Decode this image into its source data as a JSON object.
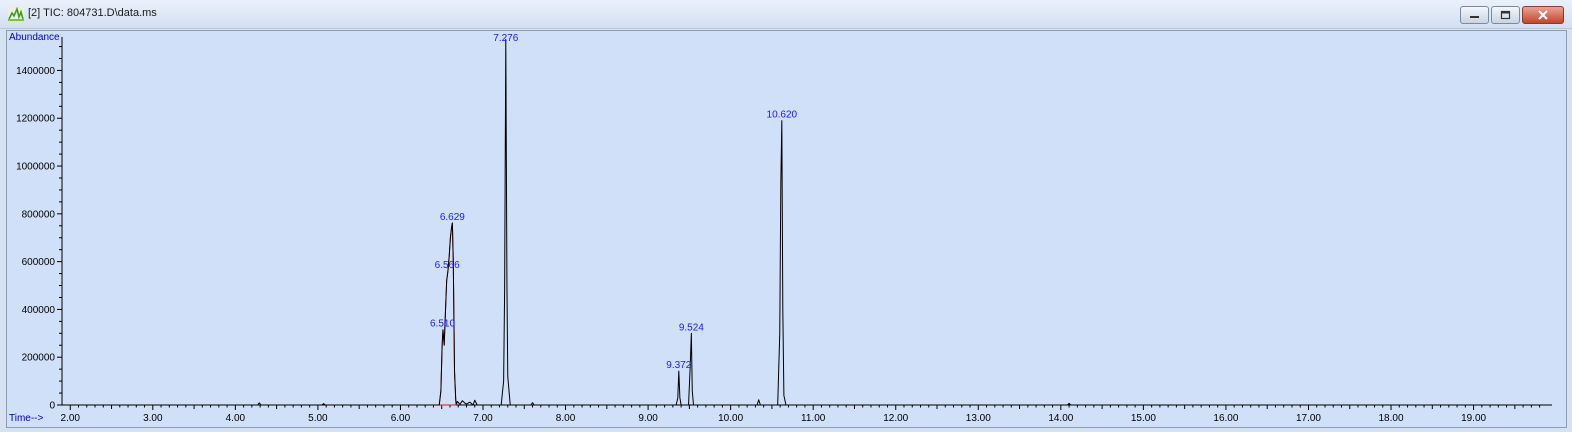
{
  "window": {
    "title": "[2] TIC: 804731.D\\data.ms",
    "icon": "chromatogram-app-icon",
    "controls": [
      "minimize-icon",
      "restore-icon",
      "close-icon"
    ]
  },
  "chart_data": {
    "type": "line",
    "title": "[2] TIC: 804731.D\\data.ms",
    "ylabel": "Abundance",
    "xlabel": "Time-->",
    "xlim": [
      1.9,
      19.95
    ],
    "ylim": [
      0,
      1540000
    ],
    "x_ticks": [
      "2.00",
      "3.00",
      "4.00",
      "5.00",
      "6.00",
      "7.00",
      "8.00",
      "9.00",
      "10.00",
      "11.00",
      "12.00",
      "13.00",
      "14.00",
      "15.00",
      "16.00",
      "17.00",
      "18.00",
      "19.00"
    ],
    "y_ticks": [
      "0",
      "200000",
      "400000",
      "600000",
      "800000",
      "1000000",
      "1200000",
      "1400000"
    ],
    "series": [
      {
        "name": "TIC",
        "color": "#000000",
        "x": [
          1.9,
          4.27,
          4.29,
          4.31,
          5.05,
          5.07,
          5.09,
          6.47,
          6.49,
          6.505,
          6.515,
          6.53,
          6.545,
          6.56,
          6.575,
          6.59,
          6.605,
          6.62,
          6.629,
          6.64,
          6.655,
          6.67,
          6.68,
          6.69,
          6.72,
          6.75,
          6.78,
          6.8,
          6.84,
          6.88,
          6.9,
          6.93,
          7.22,
          7.25,
          7.262,
          7.276,
          7.29,
          7.3,
          7.33,
          7.58,
          7.6,
          7.62,
          9.34,
          9.36,
          9.372,
          9.385,
          9.4,
          9.49,
          9.51,
          9.524,
          9.535,
          9.55,
          10.32,
          10.34,
          10.36,
          10.57,
          10.595,
          10.608,
          10.62,
          10.632,
          10.645,
          10.67,
          14.08,
          14.1,
          14.12,
          19.95
        ],
        "y": [
          0,
          0,
          9000,
          0,
          0,
          6000,
          0,
          0,
          60000,
          250000,
          315000,
          250000,
          390000,
          520000,
          560000,
          620000,
          700000,
          745000,
          762000,
          600000,
          140000,
          20000,
          5000,
          15000,
          3000,
          18000,
          8000,
          4000,
          12000,
          0,
          20000,
          0,
          0,
          100000,
          480000,
          1530000,
          500000,
          120000,
          0,
          0,
          10000,
          0,
          0,
          30000,
          142000,
          30000,
          0,
          0,
          160000,
          300000,
          60000,
          0,
          0,
          22000,
          0,
          0,
          300000,
          930000,
          1190000,
          400000,
          40000,
          0,
          0,
          7000,
          0,
          0
        ]
      }
    ],
    "integrated_peaks": [
      {
        "x": [
          6.47,
          6.49,
          6.505,
          6.515,
          6.53,
          6.545,
          6.56,
          6.575,
          6.59,
          6.605,
          6.62,
          6.629,
          6.64,
          6.655,
          6.67
        ],
        "y": [
          0,
          60000,
          250000,
          315000,
          250000,
          390000,
          520000,
          560000,
          620000,
          700000,
          745000,
          762000,
          600000,
          140000,
          20000
        ]
      }
    ],
    "peak_labels": [
      {
        "x": 6.51,
        "y": 315000,
        "label": "6.510"
      },
      {
        "x": 6.566,
        "y": 560000,
        "label": "6.566"
      },
      {
        "x": 6.629,
        "y": 762000,
        "label": "6.629"
      },
      {
        "x": 7.276,
        "y": 1530000,
        "label": "7.276"
      },
      {
        "x": 9.372,
        "y": 142000,
        "label": "9.372"
      },
      {
        "x": 9.524,
        "y": 300000,
        "label": "9.524"
      },
      {
        "x": 10.62,
        "y": 1190000,
        "label": "10.620"
      }
    ],
    "colors": {
      "background": "#d0e0f8",
      "axis_text": "#000000",
      "peak_label": "#1a1aff",
      "integration": "#d81b1b"
    }
  }
}
